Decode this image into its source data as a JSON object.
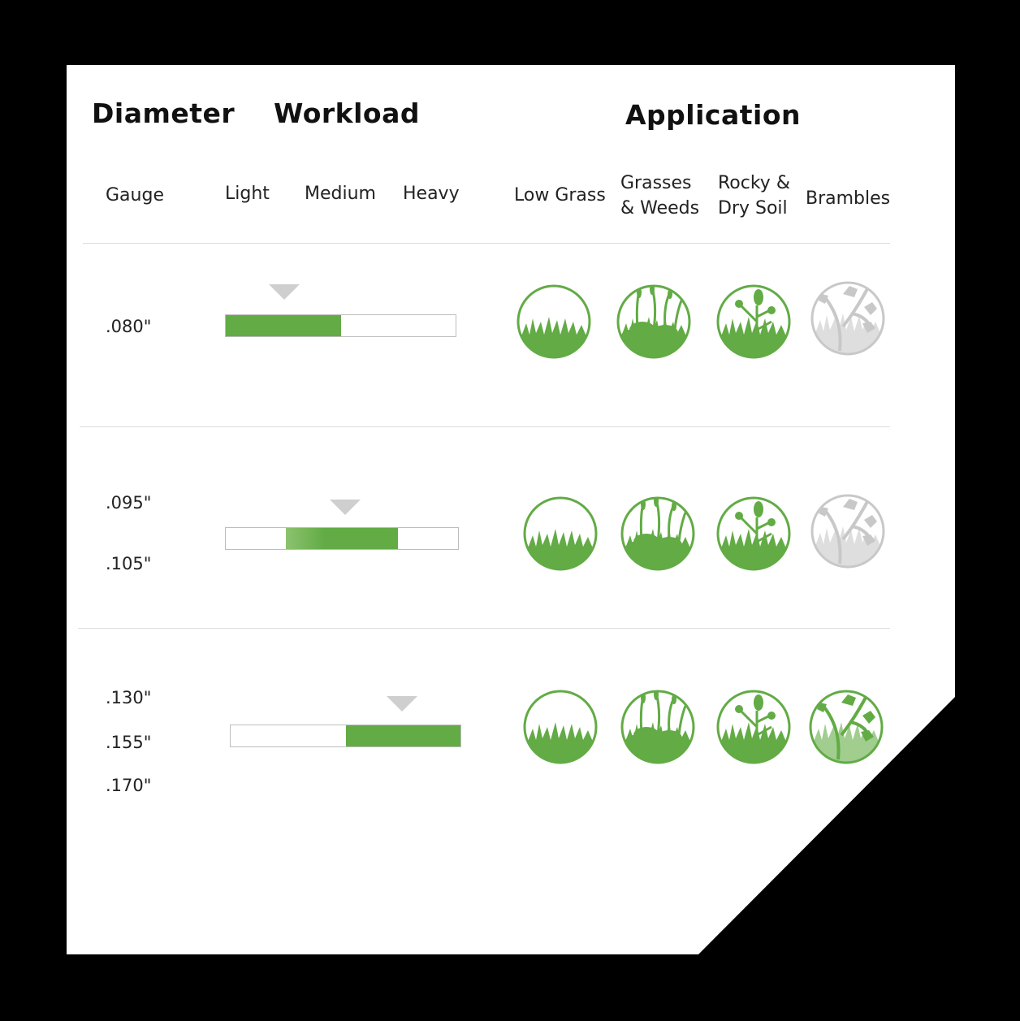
{
  "headers": {
    "diameter": "Diameter",
    "workload": "Workload",
    "application": "Application"
  },
  "subheaders": {
    "gauge": "Gauge",
    "light": "Light",
    "medium": "Medium",
    "heavy": "Heavy",
    "applications": [
      "Low Grass",
      "Grasses\n& Weeds",
      "Rocky &\nDry Soil",
      "Brambles"
    ]
  },
  "colors": {
    "active": "#62ab45",
    "inactive": "#c8c8c8",
    "marker": "#cfcfcf"
  },
  "rows": [
    {
      "gauges": [
        ".080\""
      ],
      "workload_fill_percent": [
        0,
        50
      ],
      "workload_marker": "Light",
      "applications": [
        {
          "icon": "low-grass-icon",
          "active": true
        },
        {
          "icon": "grasses-weeds-icon",
          "active": true
        },
        {
          "icon": "rocky-dry-soil-icon",
          "active": true
        },
        {
          "icon": "brambles-icon",
          "active": false
        }
      ]
    },
    {
      "gauges": [
        ".095\"",
        ".105\""
      ],
      "workload_fill_percent": [
        26,
        74
      ],
      "workload_marker": "Medium",
      "applications": [
        {
          "icon": "low-grass-icon",
          "active": true
        },
        {
          "icon": "grasses-weeds-icon",
          "active": true
        },
        {
          "icon": "rocky-dry-soil-icon",
          "active": true
        },
        {
          "icon": "brambles-icon",
          "active": false
        }
      ]
    },
    {
      "gauges": [
        ".130\"",
        ".155\"",
        ".170\""
      ],
      "workload_fill_percent": [
        50,
        100
      ],
      "workload_marker": "Heavy",
      "applications": [
        {
          "icon": "low-grass-icon",
          "active": true
        },
        {
          "icon": "grasses-weeds-icon",
          "active": true
        },
        {
          "icon": "rocky-dry-soil-icon",
          "active": true
        },
        {
          "icon": "brambles-icon",
          "active": true
        }
      ]
    }
  ]
}
